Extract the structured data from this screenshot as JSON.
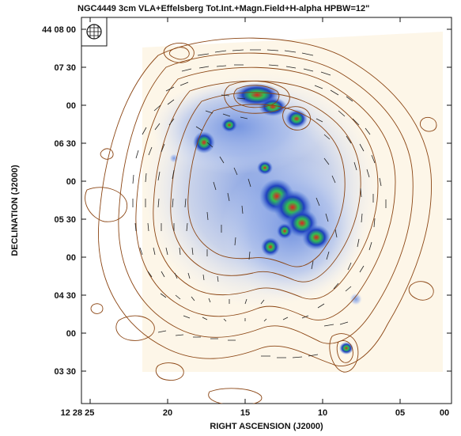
{
  "figure": {
    "title": "NGC4449   3cm   VLA+Effelsberg   Tot.Int.+Magn.Field+H-alpha   HPBW=12\"",
    "xlabel": "RIGHT ASCENSION (J2000)",
    "ylabel": "DECLINATION (J2000)",
    "x_ticks": [
      "12 28 25",
      "20",
      "15",
      "10",
      "05",
      "00"
    ],
    "y_ticks": [
      "44 08 00",
      "07 30",
      "00",
      "06 30",
      "00",
      "05 30",
      "00",
      "04 30",
      "00",
      "03 30"
    ],
    "beam_icon": "beam-ellipse-icon",
    "colors": {
      "contour": "#8b4513",
      "halpha_low": "#4a7bd8",
      "halpha_mid": "#1e3fbf",
      "halpha_high": "#e02020",
      "halpha_peak": "#30c050",
      "background_tint": "#fdf6e8",
      "vectors": "#222222"
    }
  }
}
